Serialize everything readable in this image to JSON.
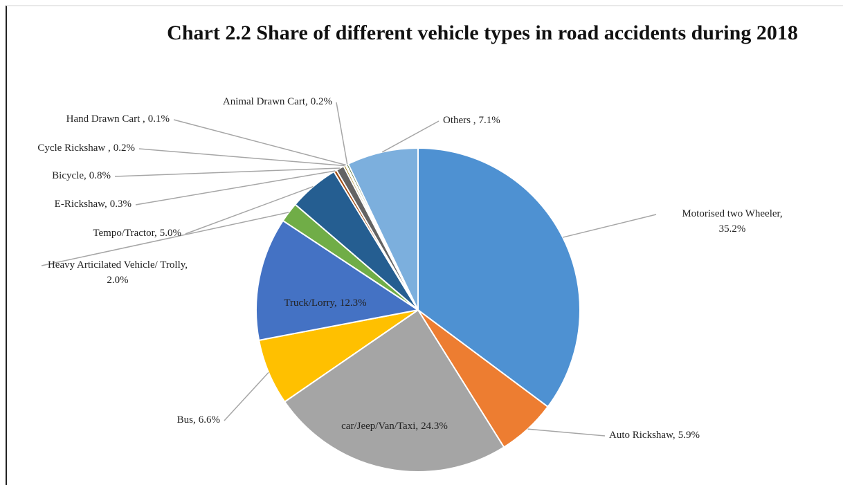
{
  "chart_data": {
    "type": "pie",
    "title": "Chart 2.2 Share of different vehicle types in road accidents during 2018",
    "categories": [
      "Motorised two Wheeler,",
      "Auto Rickshaw,",
      "car/Jeep/Van/Taxi,",
      "Bus,",
      "Truck/Lorry,",
      "Heavy Articilated Vehicle/ Trolly,",
      "Tempo/Tractor,",
      "E-Rickshaw,",
      "Bicycle,",
      "Cycle Rickshaw ,",
      "Hand Drawn Cart  ,",
      "Animal Drawn Cart,",
      "Others ,"
    ],
    "values": [
      35.2,
      5.9,
      24.3,
      6.6,
      12.3,
      2.0,
      5.0,
      0.3,
      0.8,
      0.2,
      0.1,
      0.2,
      7.1
    ],
    "value_labels": [
      "35.2%",
      "5.9%",
      "24.3%",
      "6.6%",
      "12.3%",
      "2.0%",
      "5.0%",
      "0.3%",
      "0.8%",
      "0.2%",
      "0.1%",
      "0.2%",
      "7.1%"
    ],
    "colors": [
      "#4e91d2",
      "#ed7d31",
      "#a5a5a5",
      "#ffc000",
      "#4472c4",
      "#70ad47",
      "#255e91",
      "#9e480e",
      "#636363",
      "#997300",
      "#264478",
      "#43682b",
      "#7cafdd"
    ]
  }
}
